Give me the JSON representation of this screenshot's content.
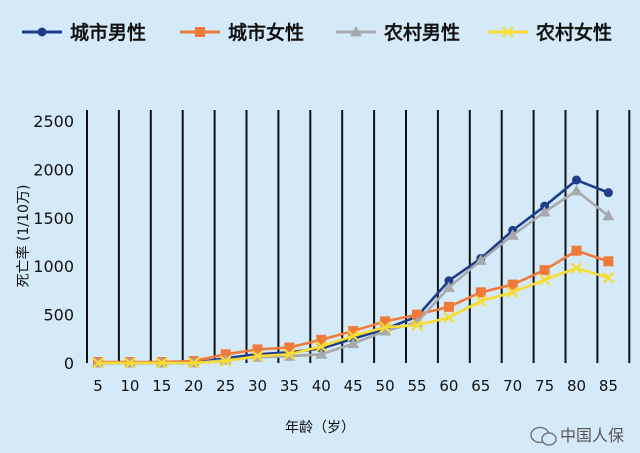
{
  "chart_data": {
    "type": "line",
    "title": "",
    "xlabel": "年龄（岁）",
    "ylabel": "死亡率 (1/10万)",
    "x": [
      5,
      10,
      15,
      20,
      25,
      30,
      35,
      40,
      45,
      50,
      55,
      60,
      65,
      70,
      75,
      80,
      85
    ],
    "ylim": [
      0,
      2500
    ],
    "yticks": [
      0,
      500,
      1000,
      1500,
      2000,
      2500
    ],
    "grid": "vertical",
    "legend_position": "top",
    "series": [
      {
        "name": "城市男性",
        "color": "#1f3d8a",
        "marker": "circle",
        "values": [
          0,
          0,
          0,
          0,
          50,
          90,
          110,
          150,
          250,
          350,
          480,
          850,
          1080,
          1370,
          1620,
          1890,
          1760
        ]
      },
      {
        "name": "城市女性",
        "color": "#f07a3a",
        "marker": "square",
        "values": [
          10,
          10,
          10,
          20,
          90,
          140,
          160,
          240,
          330,
          430,
          500,
          580,
          730,
          810,
          960,
          1160,
          1050
        ]
      },
      {
        "name": "农村男性",
        "color": "#a7a9ac",
        "marker": "triangle",
        "values": [
          0,
          0,
          0,
          0,
          30,
          60,
          70,
          90,
          200,
          330,
          420,
          780,
          1060,
          1320,
          1560,
          1780,
          1520
        ]
      },
      {
        "name": "农村女性",
        "color": "#f7dc34",
        "marker": "x",
        "values": [
          0,
          0,
          0,
          0,
          20,
          70,
          90,
          170,
          280,
          370,
          390,
          470,
          640,
          730,
          860,
          980,
          880
        ]
      }
    ]
  },
  "watermark": {
    "text": "中国人保",
    "icon": "wechat-icon"
  }
}
